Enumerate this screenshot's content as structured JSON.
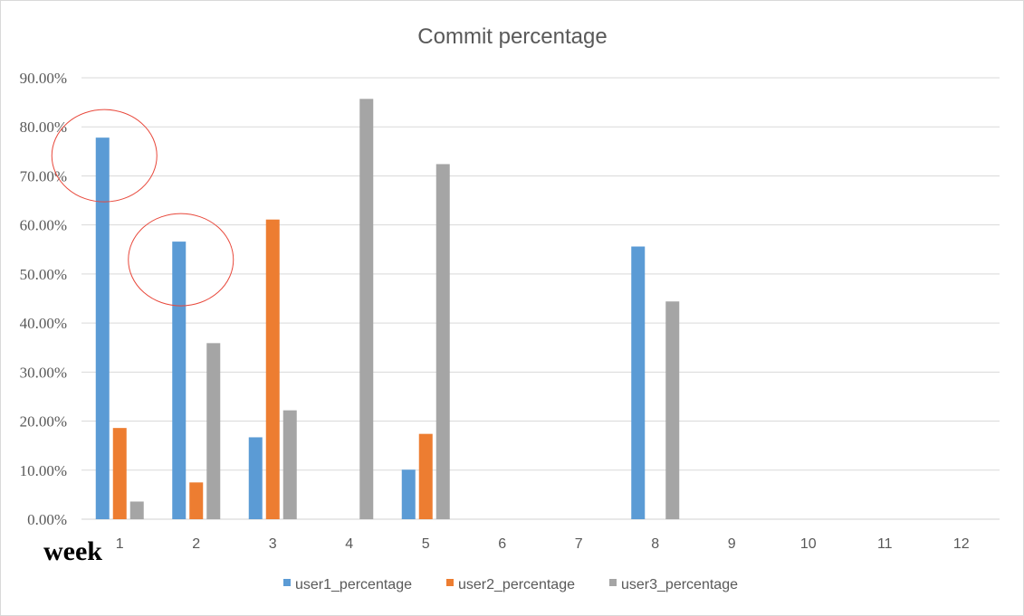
{
  "chart_data": {
    "type": "bar",
    "title": "Commit percentage",
    "xlabel": "week",
    "ylabel": "",
    "categories": [
      "1",
      "2",
      "3",
      "4",
      "5",
      "6",
      "7",
      "8",
      "9",
      "10",
      "11",
      "12"
    ],
    "series": [
      {
        "name": "user1_percentage",
        "color": "#5B9BD5",
        "values": [
          77.8,
          56.6,
          16.7,
          0,
          10.1,
          0,
          0,
          55.6,
          0,
          0,
          0,
          0
        ]
      },
      {
        "name": "user2_percentage",
        "color": "#ED7D31",
        "values": [
          18.6,
          7.5,
          61.1,
          0,
          17.4,
          0,
          0,
          0,
          0,
          0,
          0,
          0
        ]
      },
      {
        "name": "user3_percentage",
        "color": "#A5A5A5",
        "values": [
          3.6,
          35.9,
          22.2,
          85.7,
          72.4,
          0,
          0,
          44.4,
          0,
          0,
          0,
          0
        ]
      }
    ],
    "yticks": [
      "0.00%",
      "10.00%",
      "20.00%",
      "30.00%",
      "40.00%",
      "50.00%",
      "60.00%",
      "70.00%",
      "80.00%",
      "90.00%"
    ],
    "ylim": [
      0,
      90
    ],
    "grid": true,
    "legend": "bottom",
    "annotations": [
      {
        "shape": "ellipse",
        "color": "#E8483B",
        "category": "1"
      },
      {
        "shape": "ellipse",
        "color": "#E8483B",
        "category": "2"
      }
    ]
  }
}
